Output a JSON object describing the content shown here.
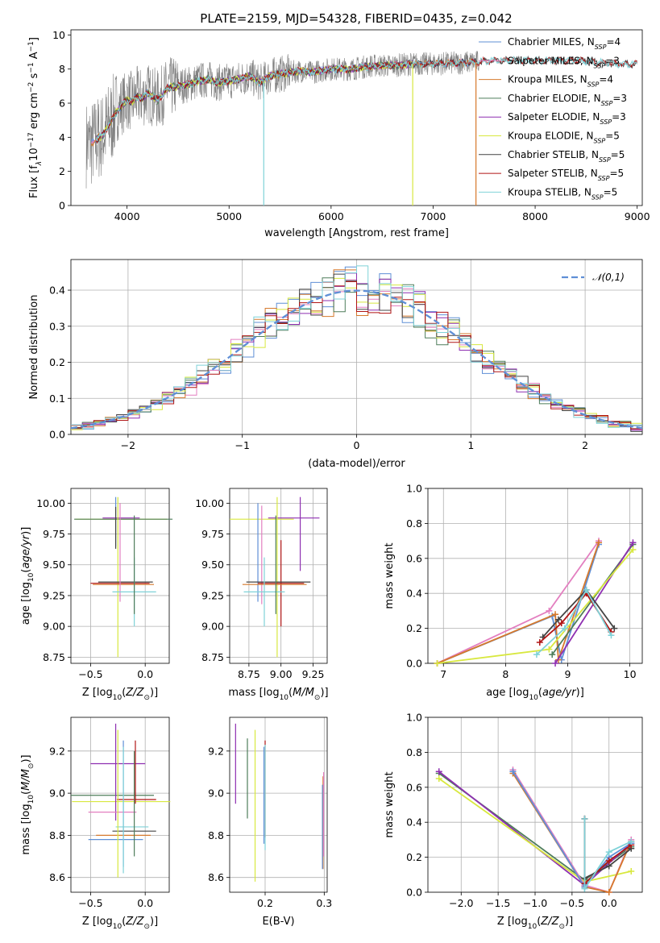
{
  "figure_title": "PLATE=2159, MJD=54328, FIBERID=0435, z=0.042",
  "colors": {
    "Chabrier MILES": "#5f8fd6",
    "Salpeter MILES": "#e37fc0",
    "Kroupa MILES": "#d6792c",
    "Chabrier ELODIE": "#4e7d5a",
    "Salpeter ELODIE": "#8e2fb1",
    "Kroupa ELODIE": "#d8e83f",
    "Chabrier STELIB": "#444444",
    "Salpeter STELIB": "#b01515",
    "Kroupa STELIB": "#7fd2d8",
    "data": "#808080",
    "normal": "#5f8fd6",
    "grid": "#b0b0b0"
  },
  "chart_data": [
    {
      "id": "spectrum",
      "type": "line",
      "title": "PLATE=2159, MJD=54328, FIBERID=0435, z=0.042",
      "xlabel": "wavelength [Angstrom, rest frame]",
      "ylabel": "Flux [f_λ 10^-17 erg cm^-2 s^-1 A^-1]",
      "xlim": [
        3450,
        9050
      ],
      "ylim": [
        0,
        10.3
      ],
      "xticks": [
        4000,
        5000,
        6000,
        7000,
        8000,
        9000
      ],
      "yticks": [
        0,
        2,
        4,
        6,
        8,
        10
      ],
      "grid": false,
      "legend": "top-right",
      "legend_entries": [
        "Chabrier MILES, N_SSP=4",
        "Salpeter MILES, N_SSP=3",
        "Kroupa MILES, N_SSP=4",
        "Chabrier ELODIE, N_SSP=3",
        "Salpeter ELODIE, N_SSP=3",
        "Kroupa ELODIE, N_SSP=5",
        "Chabrier STELIB, N_SSP=5",
        "Salpeter STELIB, N_SSP=5",
        "Kroupa STELIB, N_SSP=5"
      ],
      "model_continuum": {
        "x": [
          3650,
          3700,
          3760,
          3800,
          3850,
          3900,
          3950,
          4000,
          4050,
          4100,
          4150,
          4200,
          4250,
          4300,
          4350,
          4400,
          4500,
          4600,
          4700,
          4800,
          4900,
          5000,
          5100,
          5200,
          5300,
          5400,
          5500,
          5600,
          5700,
          5800,
          5900,
          6000,
          6200,
          6400,
          6600,
          6800,
          7000,
          7200,
          7400,
          7600,
          7800,
          8000,
          8200,
          8400,
          8600,
          8800
        ],
        "y": [
          3.6,
          3.9,
          4.1,
          4.5,
          5.0,
          5.5,
          5.9,
          6.2,
          6.1,
          6.4,
          6.3,
          6.6,
          6.4,
          6.2,
          6.5,
          6.9,
          7.0,
          7.1,
          7.3,
          7.4,
          7.2,
          7.3,
          7.4,
          7.6,
          7.2,
          7.6,
          7.7,
          7.8,
          7.9,
          7.8,
          7.9,
          8.0,
          8.0,
          8.2,
          8.2,
          8.3,
          8.3,
          8.35,
          8.4,
          8.5,
          8.5,
          8.5,
          8.5,
          8.5,
          8.4,
          8.3
        ]
      },
      "data_range": [
        3600,
        7450
      ]
    },
    {
      "id": "residuals",
      "type": "line",
      "xlabel": "(data-model)/error",
      "ylabel": "Normed distribution",
      "xlim": [
        -2.5,
        2.5
      ],
      "ylim": [
        0,
        0.485
      ],
      "xticks": [
        -2,
        -1,
        0,
        1,
        2
      ],
      "yticks": [
        0.0,
        0.1,
        0.2,
        0.3,
        0.4
      ],
      "grid": true,
      "legend": "top-right",
      "legend_entries": [
        "𝒩(0,1)"
      ],
      "bin_width": 0.1
    },
    {
      "id": "age-vs-Z",
      "type": "scatter",
      "xlabel": "Z [log10(Z/Z⊙)]",
      "ylabel": "age  [log10(age/yr)]",
      "xlim": [
        -0.68,
        0.22
      ],
      "ylim": [
        8.7,
        10.12
      ],
      "xticks": [
        -0.5,
        0.0
      ],
      "yticks": [
        8.75,
        9.0,
        9.25,
        9.5,
        9.75,
        10.0
      ],
      "grid": true,
      "errorbars": [
        {
          "series": "Kroupa ELODIE",
          "x": -0.22,
          "y": 9.87,
          "xerr": 0.42,
          "yerr": 0
        },
        {
          "series": "Chabrier ELODIE",
          "x": -0.2,
          "y": 9.87,
          "xerr": 0.45,
          "yerr": 0
        },
        {
          "series": "Salpeter ELODIE",
          "x": -0.22,
          "y": 9.88,
          "xerr": 0.17,
          "yerr": 0
        },
        {
          "series": "Chabrier MILES",
          "x": -0.27,
          "y": 9.85,
          "xerr": 0,
          "yerr": 0.2
        },
        {
          "series": "Kroupa ELODIE",
          "x": -0.25,
          "y": 9.4,
          "xerr": 0,
          "yerr": 0.65
        },
        {
          "series": "Salpeter STELIB",
          "x": -0.23,
          "y": 9.35,
          "xerr": 0.27,
          "yerr": 0
        },
        {
          "series": "Kroupa MILES",
          "x": -0.2,
          "y": 9.34,
          "xerr": 0.28,
          "yerr": 0
        },
        {
          "series": "Chabrier STELIB",
          "x": -0.18,
          "y": 9.36,
          "xerr": 0.25,
          "yerr": 0
        },
        {
          "series": "Salpeter MILES",
          "x": -0.23,
          "y": 9.6,
          "xerr": 0,
          "yerr": 0.4
        },
        {
          "series": "Kroupa STELIB",
          "x": -0.1,
          "y": 9.28,
          "xerr": 0.2,
          "yerr": 0.28
        },
        {
          "series": "Chabrier ELODIE",
          "x": -0.1,
          "y": 9.5,
          "xerr": 0,
          "yerr": 0.4
        },
        {
          "series": "Chabrier STELIB",
          "x": -0.27,
          "y": 9.8,
          "xerr": 0,
          "yerr": 0.17
        }
      ]
    },
    {
      "id": "age-vs-mass",
      "type": "scatter",
      "xlabel": "mass [log10(M/M⊙)]",
      "ylabel": "",
      "xlim": [
        8.6,
        9.36
      ],
      "ylim": [
        8.7,
        10.12
      ],
      "xticks": [
        8.75,
        9.0,
        9.25
      ],
      "yticks": [
        8.75,
        9.0,
        9.25,
        9.5,
        9.75,
        10.0
      ],
      "grid": true,
      "errorbars": [
        {
          "series": "Kroupa ELODIE",
          "x": 8.85,
          "y": 9.87,
          "xerr": 0.25,
          "yerr": 0
        },
        {
          "series": "Salpeter ELODIE",
          "x": 9.1,
          "y": 9.88,
          "xerr": 0.2,
          "yerr": 0
        },
        {
          "series": "Salpeter ELODIE",
          "x": 9.15,
          "y": 9.75,
          "xerr": 0,
          "yerr": 0.3
        },
        {
          "series": "Chabrier MILES",
          "x": 8.82,
          "y": 9.6,
          "xerr": 0,
          "yerr": 0.4
        },
        {
          "series": "Salpeter MILES",
          "x": 8.85,
          "y": 9.58,
          "xerr": 0,
          "yerr": 0.4
        },
        {
          "series": "Kroupa ELODIE",
          "x": 8.97,
          "y": 9.4,
          "xerr": 0,
          "yerr": 0.65
        },
        {
          "series": "Salpeter STELIB",
          "x": 9.0,
          "y": 9.35,
          "xerr": 0.18,
          "yerr": 0.35
        },
        {
          "series": "Kroupa MILES",
          "x": 8.95,
          "y": 9.34,
          "xerr": 0.25,
          "yerr": 0
        },
        {
          "series": "Chabrier STELIB",
          "x": 8.98,
          "y": 9.36,
          "xerr": 0.25,
          "yerr": 0
        },
        {
          "series": "Kroupa STELIB",
          "x": 8.87,
          "y": 9.28,
          "xerr": 0.16,
          "yerr": 0.28
        },
        {
          "series": "Chabrier ELODIE",
          "x": 8.96,
          "y": 9.5,
          "xerr": 0,
          "yerr": 0.4
        }
      ]
    },
    {
      "id": "mass-weight-vs-age",
      "type": "line",
      "xlabel": "age  [log10(age/yr)]",
      "ylabel": "mass weight",
      "xlim": [
        6.75,
        10.2
      ],
      "ylim": [
        0,
        1.0
      ],
      "xticks": [
        7,
        8,
        9,
        10
      ],
      "yticks": [
        0.0,
        0.2,
        0.4,
        0.6,
        0.8,
        1.0
      ],
      "grid": true,
      "series": [
        {
          "series": "Chabrier MILES",
          "x": [
            6.9,
            8.75,
            8.9,
            9.5
          ],
          "y": [
            0.0,
            0.27,
            0.02,
            0.68
          ]
        },
        {
          "series": "Salpeter MILES",
          "x": [
            6.9,
            8.7,
            9.5
          ],
          "y": [
            0.0,
            0.3,
            0.7
          ]
        },
        {
          "series": "Kroupa MILES",
          "x": [
            6.9,
            8.8,
            8.85,
            9.5
          ],
          "y": [
            0.0,
            0.28,
            0.02,
            0.69
          ]
        },
        {
          "series": "Chabrier ELODIE",
          "x": [
            8.75,
            10.05
          ],
          "y": [
            0.05,
            0.68
          ]
        },
        {
          "series": "Salpeter ELODIE",
          "x": [
            8.8,
            10.05
          ],
          "y": [
            0.0,
            0.69
          ]
        },
        {
          "series": "Kroupa ELODIE",
          "x": [
            6.9,
            8.7,
            10.05
          ],
          "y": [
            0.0,
            0.08,
            0.65
          ]
        },
        {
          "series": "Chabrier STELIB",
          "x": [
            8.6,
            8.85,
            9.3,
            9.75
          ],
          "y": [
            0.15,
            0.25,
            0.42,
            0.2
          ]
        },
        {
          "series": "Salpeter STELIB",
          "x": [
            8.55,
            8.9,
            9.3,
            9.7
          ],
          "y": [
            0.12,
            0.23,
            0.4,
            0.18
          ]
        },
        {
          "series": "Kroupa STELIB",
          "x": [
            8.5,
            8.95,
            9.3,
            9.7
          ],
          "y": [
            0.05,
            0.2,
            0.42,
            0.16
          ]
        }
      ]
    },
    {
      "id": "mass-vs-Z",
      "type": "scatter",
      "xlabel": "Z [log10(Z/Z⊙)]",
      "ylabel": "mass [log10(M/M⊙)]",
      "xlim": [
        -0.68,
        0.22
      ],
      "ylim": [
        8.53,
        9.36
      ],
      "xticks": [
        -0.5,
        0.0
      ],
      "yticks": [
        8.6,
        8.8,
        9.0,
        9.2
      ],
      "grid": true,
      "errorbars": [
        {
          "series": "Chabrier ELODIE",
          "x": -0.3,
          "y": 8.99,
          "xerr": 0.38,
          "yerr": 0
        },
        {
          "series": "Kroupa ELODIE",
          "x": -0.22,
          "y": 8.96,
          "xerr": 0.45,
          "yerr": 0
        },
        {
          "series": "Salpeter ELODIE",
          "x": -0.25,
          "y": 9.14,
          "xerr": 0.25,
          "yerr": 0
        },
        {
          "series": "Salpeter ELODIE",
          "x": -0.27,
          "y": 9.1,
          "xerr": 0,
          "yerr": 0.23
        },
        {
          "series": "Salpeter STELIB",
          "x": -0.08,
          "y": 8.97,
          "xerr": 0.18,
          "yerr": 0
        },
        {
          "series": "Salpeter MILES",
          "x": -0.3,
          "y": 8.91,
          "xerr": 0.22,
          "yerr": 0
        },
        {
          "series": "Kroupa MILES",
          "x": -0.2,
          "y": 8.8,
          "xerr": 0.25,
          "yerr": 0
        },
        {
          "series": "Chabrier MILES",
          "x": -0.27,
          "y": 8.78,
          "xerr": 0.25,
          "yerr": 0
        },
        {
          "series": "Chabrier STELIB",
          "x": -0.1,
          "y": 8.82,
          "xerr": 0.2,
          "yerr": 0
        },
        {
          "series": "Kroupa STELIB",
          "x": -0.12,
          "y": 8.84,
          "xerr": 0.15,
          "yerr": 0
        },
        {
          "series": "Kroupa ELODIE",
          "x": -0.25,
          "y": 8.95,
          "xerr": 0,
          "yerr": 0.35
        },
        {
          "series": "Chabrier ELODIE",
          "x": -0.1,
          "y": 8.95,
          "xerr": 0,
          "yerr": 0.25
        },
        {
          "series": "Salpeter STELIB",
          "x": -0.09,
          "y": 9.1,
          "xerr": 0,
          "yerr": 0.15
        },
        {
          "series": "Chabrier MILES",
          "x": -0.2,
          "y": 8.95,
          "xerr": 0,
          "yerr": 0.3
        },
        {
          "series": "Kroupa STELIB",
          "x": -0.2,
          "y": 8.92,
          "xerr": 0,
          "yerr": 0.3
        }
      ]
    },
    {
      "id": "mass-vs-EBV",
      "type": "scatter",
      "xlabel": "E(B-V)",
      "ylabel": "",
      "xlim": [
        0.14,
        0.305
      ],
      "ylim": [
        8.53,
        9.36
      ],
      "xticks": [
        0.2,
        0.3
      ],
      "yticks": [
        8.6,
        8.8,
        9.0,
        9.2
      ],
      "grid": true,
      "errorbars": [
        {
          "series": "Salpeter ELODIE",
          "x": 0.15,
          "y": 9.14,
          "xerr": 0,
          "yerr": 0.19
        },
        {
          "series": "Chabrier ELODIE",
          "x": 0.17,
          "y": 9.07,
          "xerr": 0,
          "yerr": 0.19
        },
        {
          "series": "Kroupa ELODIE",
          "x": 0.183,
          "y": 8.94,
          "xerr": 0,
          "yerr": 0.36
        },
        {
          "series": "Salpeter STELIB",
          "x": 0.2,
          "y": 9.02,
          "xerr": 0,
          "yerr": 0.23
        },
        {
          "series": "Chabrier MILES",
          "x": 0.198,
          "y": 8.99,
          "xerr": 0,
          "yerr": 0.23
        },
        {
          "series": "Kroupa STELIB",
          "x": 0.2,
          "y": 8.98,
          "xerr": 0,
          "yerr": 0.25
        },
        {
          "series": "Kroupa MILES",
          "x": 0.298,
          "y": 8.86,
          "xerr": 0,
          "yerr": 0.22
        },
        {
          "series": "Chabrier MILES",
          "x": 0.297,
          "y": 8.84,
          "xerr": 0,
          "yerr": 0.2
        },
        {
          "series": "Salpeter MILES",
          "x": 0.299,
          "y": 8.9,
          "xerr": 0,
          "yerr": 0.2
        }
      ]
    },
    {
      "id": "mass-weight-vs-Z",
      "type": "line",
      "xlabel": "Z [log10(Z/Z⊙)]",
      "ylabel": "mass weight",
      "xlim": [
        -2.45,
        0.45
      ],
      "ylim": [
        0,
        1.0
      ],
      "xticks": [
        -2.0,
        -1.5,
        -1.0,
        -0.5,
        0.0
      ],
      "yticks": [
        0.0,
        0.2,
        0.4,
        0.6,
        0.8,
        1.0
      ],
      "grid": true,
      "series": [
        {
          "series": "Chabrier ELODIE",
          "x": [
            -2.3,
            -0.33,
            0.3
          ],
          "y": [
            0.68,
            0.07,
            0.26
          ]
        },
        {
          "series": "Salpeter ELODIE",
          "x": [
            -2.3,
            -0.33,
            0.3
          ],
          "y": [
            0.69,
            0.04,
            0.28
          ]
        },
        {
          "series": "Kroupa ELODIE",
          "x": [
            -2.3,
            -0.33,
            0.3
          ],
          "y": [
            0.65,
            0.06,
            0.12
          ]
        },
        {
          "series": "Salpeter MILES",
          "x": [
            -1.3,
            -0.33,
            0.0,
            0.3
          ],
          "y": [
            0.7,
            0.04,
            0.0,
            0.3
          ]
        },
        {
          "series": "Kroupa MILES",
          "x": [
            -1.3,
            -0.33,
            0.0,
            0.3
          ],
          "y": [
            0.68,
            0.03,
            0.0,
            0.29
          ]
        },
        {
          "series": "Chabrier MILES",
          "x": [
            -1.3,
            -0.33,
            0.0,
            0.3
          ],
          "y": [
            0.69,
            0.03,
            0.2,
            0.28
          ]
        },
        {
          "series": "Chabrier STELIB",
          "x": [
            -0.33,
            -0.33,
            0.0,
            0.3
          ],
          "y": [
            0.42,
            0.08,
            0.15,
            0.25
          ]
        },
        {
          "series": "Salpeter STELIB",
          "x": [
            -0.33,
            -0.33,
            0.0,
            0.3
          ],
          "y": [
            0.42,
            0.05,
            0.18,
            0.27
          ]
        },
        {
          "series": "Kroupa STELIB",
          "x": [
            -0.33,
            -0.33,
            0.0,
            0.3
          ],
          "y": [
            0.42,
            0.02,
            0.23,
            0.29
          ]
        }
      ]
    }
  ]
}
